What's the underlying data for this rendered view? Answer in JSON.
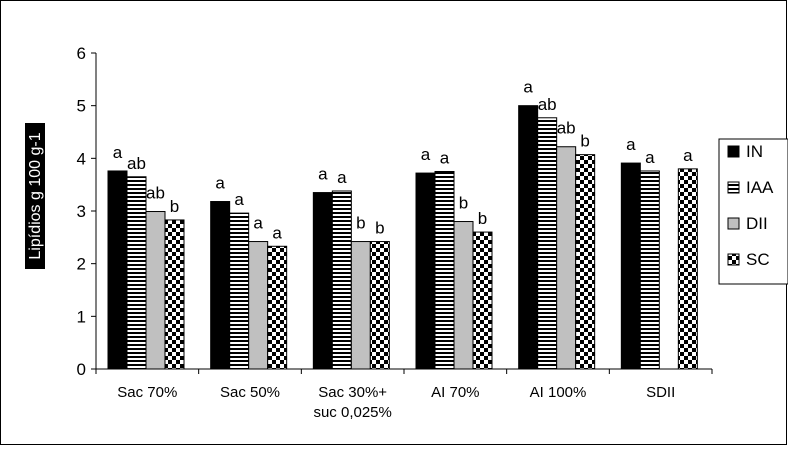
{
  "chart_data": {
    "type": "bar",
    "ylabel": "Lipídios g 100 g-1",
    "ylim": [
      0,
      6
    ],
    "yticks": [
      0,
      1,
      2,
      3,
      4,
      5,
      6
    ],
    "categories": [
      "Sac 70%",
      "Sac 50%",
      "Sac 30%+\nsuc 0,025%",
      "AI 70%",
      "AI 100%",
      "SDII"
    ],
    "series": [
      {
        "name": "IN",
        "pattern": "solid",
        "values": [
          3.76,
          3.18,
          3.35,
          3.72,
          5.0,
          3.91
        ]
      },
      {
        "name": "IAA",
        "pattern": "hstripe",
        "values": [
          3.65,
          2.96,
          3.38,
          3.75,
          4.77,
          3.76
        ]
      },
      {
        "name": "DII",
        "pattern": "gray",
        "values": [
          2.99,
          2.42,
          2.42,
          2.8,
          4.22,
          null
        ]
      },
      {
        "name": "SC",
        "pattern": "checker",
        "values": [
          2.83,
          2.33,
          2.42,
          2.6,
          4.07,
          3.8
        ]
      }
    ],
    "letters": [
      [
        "a",
        "ab",
        "ab",
        "b"
      ],
      [
        "a",
        "a",
        "a",
        "a"
      ],
      [
        "a",
        "a",
        "b",
        "b"
      ],
      [
        "a",
        "a",
        "b",
        "b"
      ],
      [
        "a",
        "ab",
        "ab",
        "b"
      ],
      [
        "a",
        "a",
        "",
        "a"
      ]
    ],
    "legend_position": "right",
    "grid": false,
    "colors": {
      "solid": "#000000",
      "gray": "#c0c0c0",
      "background": "#ffffff",
      "border": "#000000"
    }
  }
}
